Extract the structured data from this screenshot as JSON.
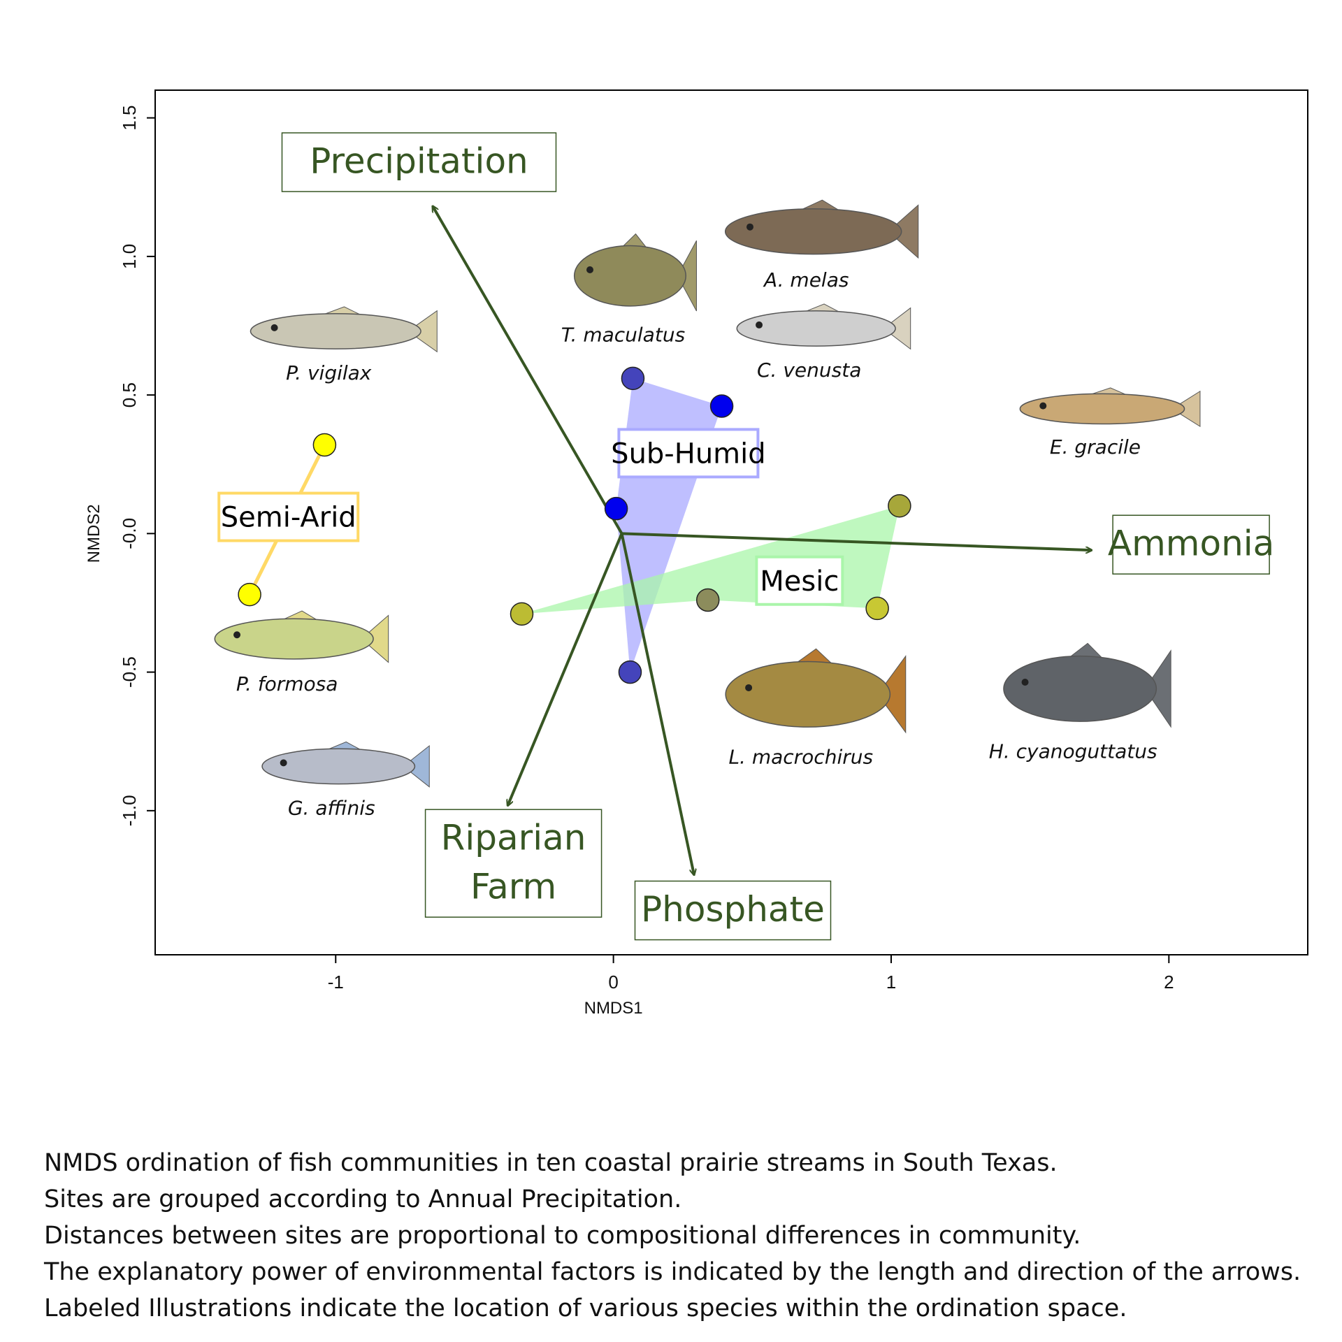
{
  "chart_data": {
    "type": "scatter",
    "title": "",
    "xlabel": "NMDS1",
    "ylabel": "NMDS2",
    "xlim": [
      -1.65,
      2.5
    ],
    "ylim": [
      -1.52,
      1.6
    ],
    "xticks": [
      -1,
      0,
      1,
      2
    ],
    "xtick_labels": [
      "-1",
      "0",
      "1",
      "2"
    ],
    "yticks": [
      -1.0,
      -0.5,
      0.0,
      0.5,
      1.0,
      1.5
    ],
    "ytick_labels": [
      "-1.0",
      "-0.5",
      "-0.0",
      "0.5",
      "1.0",
      "1.5"
    ],
    "grid": false,
    "groups": [
      {
        "name": "Semi-Arid",
        "color": "#ffff00",
        "hull_color": "#ffd966",
        "points": [
          {
            "x": -1.04,
            "y": 0.32,
            "color": "#ffff00"
          },
          {
            "x": -1.31,
            "y": -0.22,
            "color": "#ffff00"
          }
        ]
      },
      {
        "name": "Sub-Humid",
        "color": "#0000ee",
        "hull_color": "#aaaaff",
        "points": [
          {
            "x": 0.07,
            "y": 0.56,
            "color": "#4444bb"
          },
          {
            "x": 0.39,
            "y": 0.46,
            "color": "#0000ee"
          },
          {
            "x": 0.01,
            "y": 0.09,
            "color": "#0000ee"
          },
          {
            "x": 0.06,
            "y": -0.5,
            "color": "#4444bb"
          }
        ]
      },
      {
        "name": "Mesic",
        "color": "#bcbc33",
        "hull_color": "#aaf5aa",
        "points": [
          {
            "x": 1.03,
            "y": 0.1,
            "color": "#a7a73a"
          },
          {
            "x": -0.33,
            "y": -0.29,
            "color": "#bcbc33"
          },
          {
            "x": 0.34,
            "y": -0.24,
            "color": "#8c8c5c"
          },
          {
            "x": 0.95,
            "y": -0.27,
            "color": "#c8c833"
          }
        ]
      }
    ],
    "arrows": [
      {
        "name": "Precipitation",
        "lines": [
          "Precipitation"
        ],
        "x": -0.65,
        "y": 1.18
      },
      {
        "name": "Ammonia",
        "lines": [
          "Ammonia"
        ],
        "x": 1.72,
        "y": -0.06
      },
      {
        "name": "Riparian Farm",
        "lines": [
          "Riparian",
          "Farm"
        ],
        "x": -0.38,
        "y": -0.98
      },
      {
        "name": "Phosphate",
        "lines": [
          "Phosphate"
        ],
        "x": 0.29,
        "y": -1.23
      }
    ],
    "arrow_origin": {
      "x": 0.03,
      "y": 0.0
    },
    "arrow_color": "#375623",
    "species": [
      {
        "name": "A. melas",
        "x": 0.72,
        "y": 1.09
      },
      {
        "name": "T. maculatus",
        "x": 0.06,
        "y": 0.93
      },
      {
        "name": "P. vigilax",
        "x": -1.0,
        "y": 0.73
      },
      {
        "name": "C. venusta",
        "x": 0.73,
        "y": 0.74
      },
      {
        "name": "E. gracile",
        "x": 1.76,
        "y": 0.45
      },
      {
        "name": "P. formosa",
        "x": -1.15,
        "y": -0.38
      },
      {
        "name": "G. affinis",
        "x": -0.99,
        "y": -0.84
      },
      {
        "name": "L. macrochirus",
        "x": 0.7,
        "y": -0.58
      },
      {
        "name": "H. cyanoguttatus",
        "x": 1.68,
        "y": -0.56
      }
    ]
  },
  "caption": [
    "NMDS ordination of fish communities in ten coastal prairie streams in South Texas.",
    "Sites are grouped according to Annual Precipitation.",
    "Distances between sites are proportional to compositional differences in community.",
    "The explanatory power of environmental factors is indicated by the length and direction of the arrows.",
    "Labeled Illustrations indicate the location of various species within the ordination space."
  ]
}
